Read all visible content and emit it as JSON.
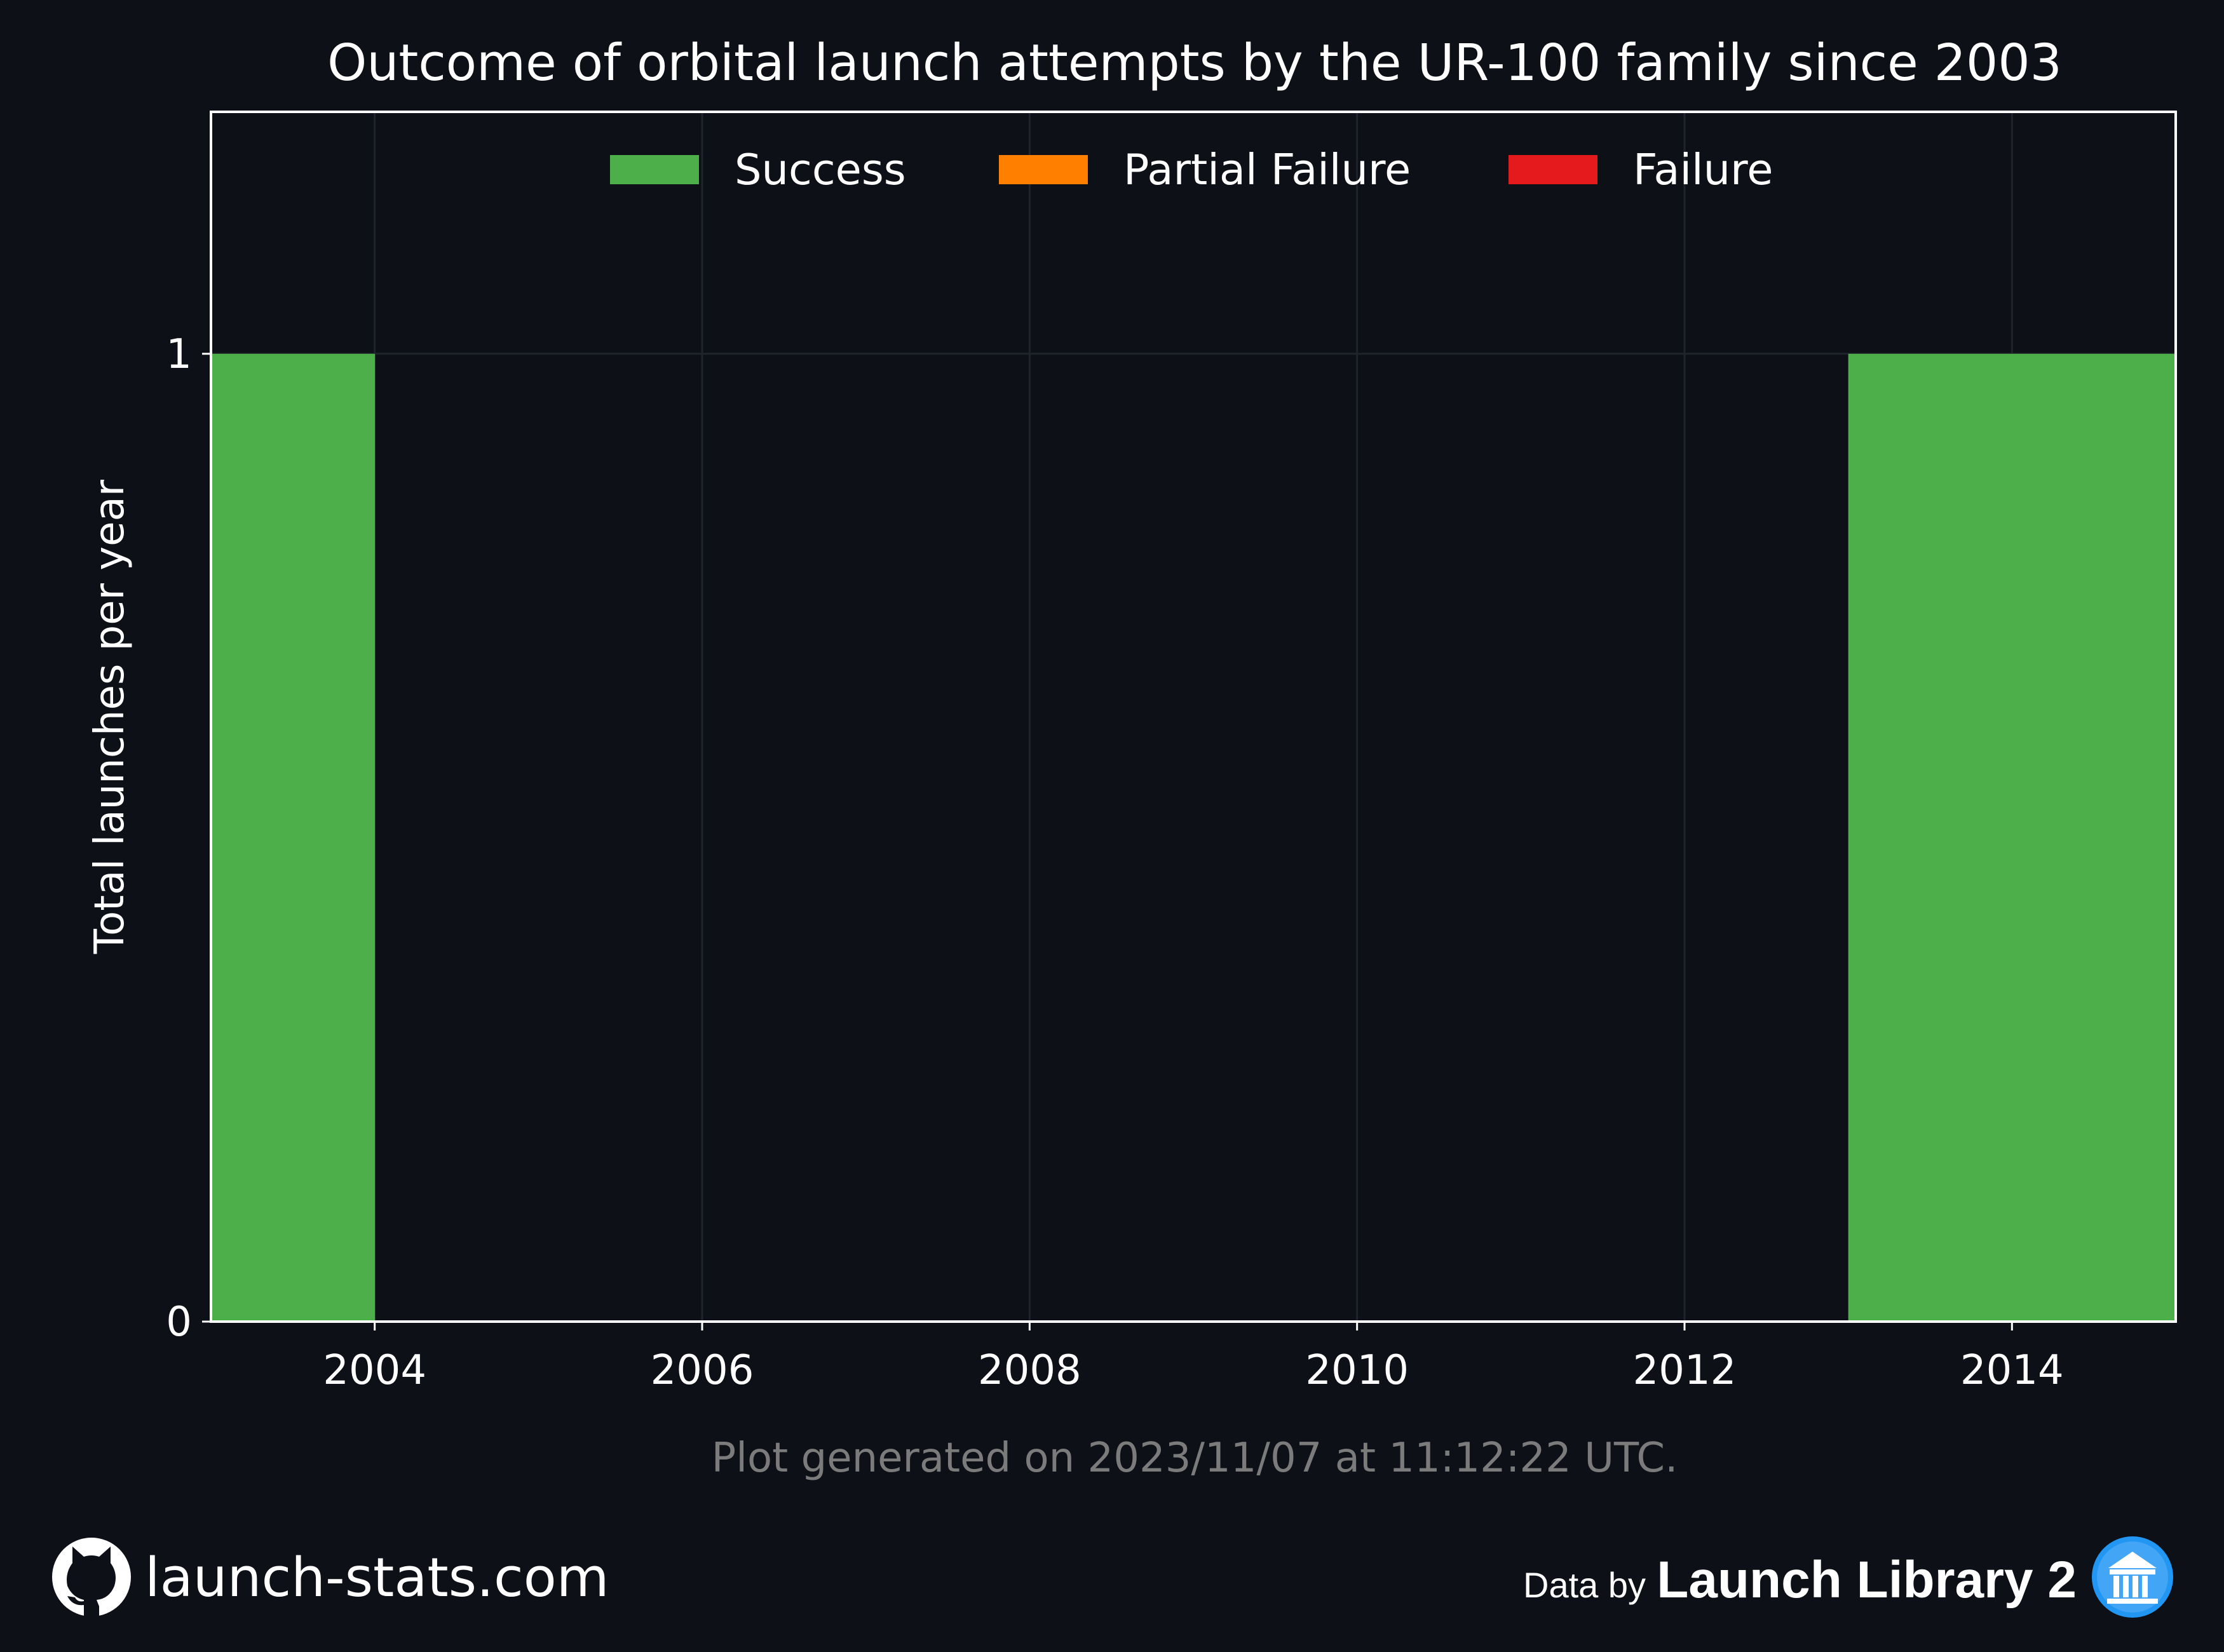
{
  "chart_data": {
    "type": "bar",
    "title": "Outcome of orbital launch attempts by the UR-100 family since 2003",
    "ylabel": "Total launches per year",
    "xlabel": "",
    "categories": [
      "2003",
      "2004",
      "2005",
      "2006",
      "2007",
      "2008",
      "2009",
      "2010",
      "2011",
      "2012",
      "2013",
      "2014"
    ],
    "series": [
      {
        "name": "Success",
        "color": "#4daf4a",
        "values": [
          1,
          0,
          0,
          0,
          0,
          0,
          0,
          0,
          0,
          0,
          1,
          1
        ]
      },
      {
        "name": "Partial Failure",
        "color": "#ff7f00",
        "values": [
          0,
          0,
          0,
          0,
          0,
          0,
          0,
          0,
          0,
          0,
          0,
          0
        ]
      },
      {
        "name": "Failure",
        "color": "#e41a1c",
        "values": [
          0,
          0,
          0,
          0,
          0,
          0,
          0,
          0,
          0,
          0,
          0,
          0
        ]
      }
    ],
    "xlim": [
      2003,
      2015
    ],
    "ylim": [
      0,
      1.25
    ],
    "xticks": [
      2004,
      2006,
      2008,
      2010,
      2012,
      2014
    ],
    "yticks": [
      0,
      1
    ],
    "stacked": true,
    "legend": "top-center",
    "grid": true
  },
  "footnote": "Plot generated on 2023/11/07 at 11:12:22 UTC.",
  "branding": {
    "site": "launch-stats.com",
    "site_icon": "github-icon",
    "data_by": "Data by",
    "source": "Launch Library 2",
    "source_icon": "launch-library-icon"
  },
  "colors": {
    "background": "#0d1017",
    "axes": "#ffffff",
    "grid": "#1f232b"
  }
}
